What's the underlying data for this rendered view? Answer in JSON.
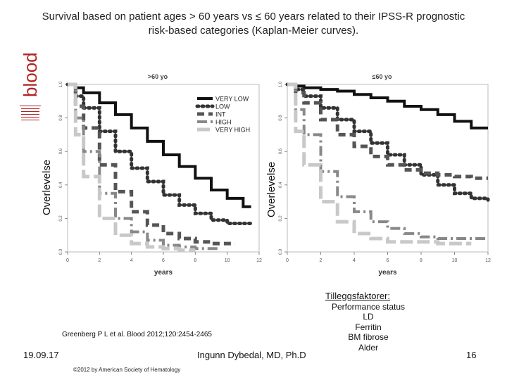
{
  "title_line1": "Survival based on patient ages > 60 years vs ≤ 60 years related to their IPSS-R prognostic",
  "title_line2": "risk-based categories (Kaplan-Meier curves).",
  "logo_text": "blood",
  "side_label": "Overlevelse",
  "citation": "Greenberg P L et al. Blood 2012;120:2454-2465",
  "footer": {
    "date": "19.09.17",
    "author": "Ingunn Dybedal, MD, Ph.D",
    "page": "16",
    "copyright": "©2012 by American Society of Hematology"
  },
  "factors": {
    "title": "Tilleggsfaktorer:",
    "items": [
      "Performance status",
      "LD",
      "Ferritin",
      "BM fibrose",
      "Alder"
    ]
  },
  "colors": {
    "very_low": "#111111",
    "low": "#333333",
    "int": "#555555",
    "high": "#888888",
    "very_high": "#c8c8c8"
  },
  "chart_data": [
    {
      "type": "line",
      "title": ">60 yo",
      "xlabel": "years",
      "ylabel": "",
      "xlim": [
        0,
        12
      ],
      "ylim": [
        0,
        1
      ],
      "xticks": [
        0,
        2,
        4,
        6,
        8,
        10,
        12
      ],
      "yticks": [
        0.0,
        0.2,
        0.4,
        0.6,
        0.8,
        1.0
      ],
      "legend_position": "top-right",
      "series": [
        {
          "name": "VERY LOW",
          "style": "solid",
          "x": [
            0,
            0.5,
            1,
            2,
            3,
            4,
            5,
            6,
            7,
            8,
            9,
            10,
            11,
            11.5
          ],
          "y": [
            1.0,
            0.98,
            0.95,
            0.89,
            0.82,
            0.74,
            0.66,
            0.58,
            0.51,
            0.44,
            0.37,
            0.32,
            0.27,
            0.27
          ]
        },
        {
          "name": "LOW",
          "style": "dot",
          "x": [
            0,
            0.5,
            1,
            2,
            3,
            4,
            5,
            6,
            7,
            8,
            9,
            10,
            11,
            11.5
          ],
          "y": [
            1.0,
            0.93,
            0.86,
            0.72,
            0.6,
            0.5,
            0.42,
            0.34,
            0.28,
            0.23,
            0.19,
            0.17,
            0.17,
            0.17
          ]
        },
        {
          "name": "INT",
          "style": "dash",
          "x": [
            0,
            0.5,
            1,
            2,
            3,
            4,
            5,
            6,
            7,
            8,
            9,
            10,
            10.5
          ],
          "y": [
            1.0,
            0.87,
            0.74,
            0.52,
            0.36,
            0.24,
            0.16,
            0.11,
            0.08,
            0.06,
            0.05,
            0.05,
            0.05
          ]
        },
        {
          "name": "HIGH",
          "style": "dash-dot",
          "x": [
            0,
            0.5,
            1,
            2,
            3,
            4,
            5,
            6,
            7,
            8,
            9.5
          ],
          "y": [
            1.0,
            0.8,
            0.6,
            0.35,
            0.2,
            0.12,
            0.07,
            0.04,
            0.03,
            0.02,
            0.02
          ]
        },
        {
          "name": "VERY HIGH",
          "style": "long-dash",
          "x": [
            0,
            0.5,
            1,
            2,
            3,
            4,
            5,
            6,
            7,
            8
          ],
          "y": [
            1.0,
            0.7,
            0.45,
            0.2,
            0.1,
            0.05,
            0.03,
            0.02,
            0.01,
            0.01
          ]
        }
      ]
    },
    {
      "type": "line",
      "title": "≤60 yo",
      "xlabel": "years",
      "ylabel": "",
      "xlim": [
        0,
        12
      ],
      "ylim": [
        0,
        1
      ],
      "xticks": [
        0,
        2,
        4,
        6,
        8,
        10,
        12
      ],
      "yticks": [
        0.0,
        0.2,
        0.4,
        0.6,
        0.8,
        1.0
      ],
      "legend_position": "none",
      "series": [
        {
          "name": "VERY LOW",
          "style": "solid",
          "x": [
            0,
            0.5,
            1,
            2,
            3,
            4,
            5,
            6,
            7,
            8,
            9,
            10,
            11,
            12
          ],
          "y": [
            1.0,
            0.99,
            0.98,
            0.97,
            0.96,
            0.94,
            0.92,
            0.9,
            0.87,
            0.85,
            0.82,
            0.78,
            0.74,
            0.74
          ]
        },
        {
          "name": "LOW",
          "style": "dot",
          "x": [
            0,
            0.5,
            1,
            2,
            3,
            4,
            5,
            6,
            7,
            8,
            9,
            10,
            11,
            12
          ],
          "y": [
            1.0,
            0.97,
            0.93,
            0.86,
            0.79,
            0.72,
            0.65,
            0.58,
            0.52,
            0.46,
            0.4,
            0.35,
            0.32,
            0.31
          ]
        },
        {
          "name": "INT",
          "style": "dash",
          "x": [
            0,
            0.5,
            1,
            2,
            3,
            4,
            5,
            6,
            7,
            8,
            9,
            10,
            11,
            12
          ],
          "y": [
            1.0,
            0.95,
            0.89,
            0.79,
            0.7,
            0.63,
            0.57,
            0.52,
            0.49,
            0.47,
            0.46,
            0.45,
            0.44,
            0.44
          ]
        },
        {
          "name": "HIGH",
          "style": "dash-dot",
          "x": [
            0,
            0.5,
            1,
            2,
            3,
            4,
            5,
            6,
            7,
            8,
            9,
            10,
            11,
            12
          ],
          "y": [
            1.0,
            0.85,
            0.7,
            0.48,
            0.33,
            0.24,
            0.18,
            0.14,
            0.11,
            0.09,
            0.08,
            0.08,
            0.08,
            0.08
          ]
        },
        {
          "name": "VERY HIGH",
          "style": "long-dash",
          "x": [
            0,
            0.5,
            1,
            2,
            3,
            4,
            5,
            6,
            7,
            8,
            9,
            10,
            11
          ],
          "y": [
            1.0,
            0.72,
            0.52,
            0.3,
            0.18,
            0.11,
            0.08,
            0.06,
            0.06,
            0.06,
            0.05,
            0.05,
            0.05
          ]
        }
      ]
    }
  ]
}
